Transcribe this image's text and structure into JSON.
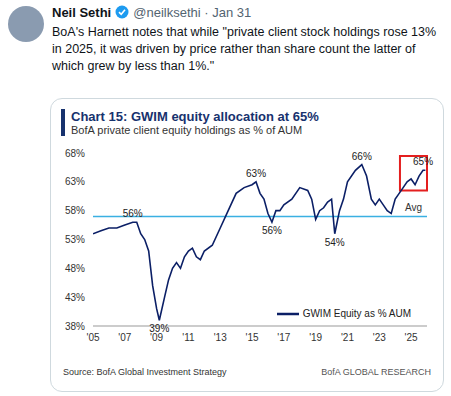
{
  "tweet": {
    "name": "Neil Sethi",
    "meta": "@neilksethi · Jan 31",
    "text": "BoA's Harnett notes that while \"private client stock holdings rose 13% in 2025, it was driven by price rather than share count the latter of which grew by less than 1%.\""
  },
  "chart_data": {
    "type": "line",
    "title": "Chart 15: GWIM equity allocation at 65%",
    "subtitle": "BofA private client equity holdings as % of AUM",
    "source": "Source: BofA Global Investment Strategy",
    "brand": "BofA GLOBAL RESEARCH",
    "x": [
      2005.0,
      2005.5,
      2006.0,
      2006.5,
      2007.0,
      2007.5,
      2007.75,
      2008.0,
      2008.25,
      2008.5,
      2008.75,
      2009.0,
      2009.17,
      2009.5,
      2009.75,
      2010.0,
      2010.25,
      2010.5,
      2010.75,
      2011.0,
      2011.25,
      2011.5,
      2011.75,
      2012.0,
      2012.5,
      2013.0,
      2013.5,
      2014.0,
      2014.5,
      2015.0,
      2015.25,
      2015.5,
      2015.75,
      2016.0,
      2016.25,
      2016.5,
      2016.75,
      2017.0,
      2017.5,
      2018.0,
      2018.5,
      2018.75,
      2019.0,
      2019.25,
      2019.5,
      2019.75,
      2020.0,
      2020.2,
      2020.5,
      2020.75,
      2021.0,
      2021.5,
      2021.9,
      2022.2,
      2022.5,
      2022.75,
      2023.0,
      2023.25,
      2023.5,
      2023.75,
      2024.0,
      2024.25,
      2024.5,
      2024.75,
      2025.0,
      2025.25,
      2025.5,
      2025.75,
      2025.9
    ],
    "series": [
      {
        "name": "GWIM Equity as % AUM",
        "color": "#0b1f66",
        "values": [
          54,
          54.5,
          55,
          55,
          55.5,
          56,
          56,
          54,
          53,
          51,
          45,
          41,
          39,
          43,
          46,
          48,
          49,
          48,
          50,
          51,
          51.5,
          50,
          49.5,
          51,
          52,
          55,
          58,
          61,
          62,
          62.5,
          63,
          61,
          60,
          57.5,
          56,
          58,
          58,
          59,
          60,
          62,
          61.5,
          60,
          56.5,
          58,
          58.5,
          59.5,
          60,
          54,
          58,
          60,
          63,
          65,
          66,
          64,
          60,
          59,
          60,
          59,
          58,
          57.5,
          60,
          61,
          62,
          63,
          63.5,
          62.5,
          64,
          65,
          65
        ]
      }
    ],
    "xlim": [
      2005,
      2026
    ],
    "xticks": [
      {
        "value": 2005,
        "label": "'05"
      },
      {
        "value": 2007,
        "label": "'07"
      },
      {
        "value": 2009,
        "label": "'09"
      },
      {
        "value": 2011,
        "label": "'11"
      },
      {
        "value": 2013,
        "label": "'13"
      },
      {
        "value": 2015,
        "label": "'15"
      },
      {
        "value": 2017,
        "label": "'17"
      },
      {
        "value": 2019,
        "label": "'19"
      },
      {
        "value": 2021,
        "label": "'21"
      },
      {
        "value": 2023,
        "label": "'23"
      },
      {
        "value": 2025,
        "label": "'25"
      }
    ],
    "ylim": [
      38,
      68
    ],
    "yticks": [
      {
        "value": 38,
        "label": "38%"
      },
      {
        "value": 43,
        "label": "43%"
      },
      {
        "value": 48,
        "label": "48%"
      },
      {
        "value": 53,
        "label": "53%"
      },
      {
        "value": 58,
        "label": "58%"
      },
      {
        "value": 63,
        "label": "63%"
      },
      {
        "value": 68,
        "label": "68%"
      }
    ],
    "reference_line": {
      "value": 57,
      "label": "Avg",
      "color": "#3ab0e2"
    },
    "annotations": [
      {
        "x": 2007.5,
        "value": 56,
        "label": "56%"
      },
      {
        "x": 2009.17,
        "value": 39,
        "label": "39%"
      },
      {
        "x": 2015.25,
        "value": 63,
        "label": "63%"
      },
      {
        "x": 2016.25,
        "value": 56,
        "label": "56%"
      },
      {
        "x": 2020.2,
        "value": 54,
        "label": "54%"
      },
      {
        "x": 2021.9,
        "value": 66,
        "label": "66%"
      },
      {
        "x": 2025.75,
        "value": 65,
        "label": "65%"
      }
    ],
    "highlight": {
      "x": [
        2024.3,
        2026
      ],
      "y": [
        61.5,
        67.5
      ],
      "color": "#e41f1f"
    },
    "grid": false,
    "legend": "lower right"
  }
}
